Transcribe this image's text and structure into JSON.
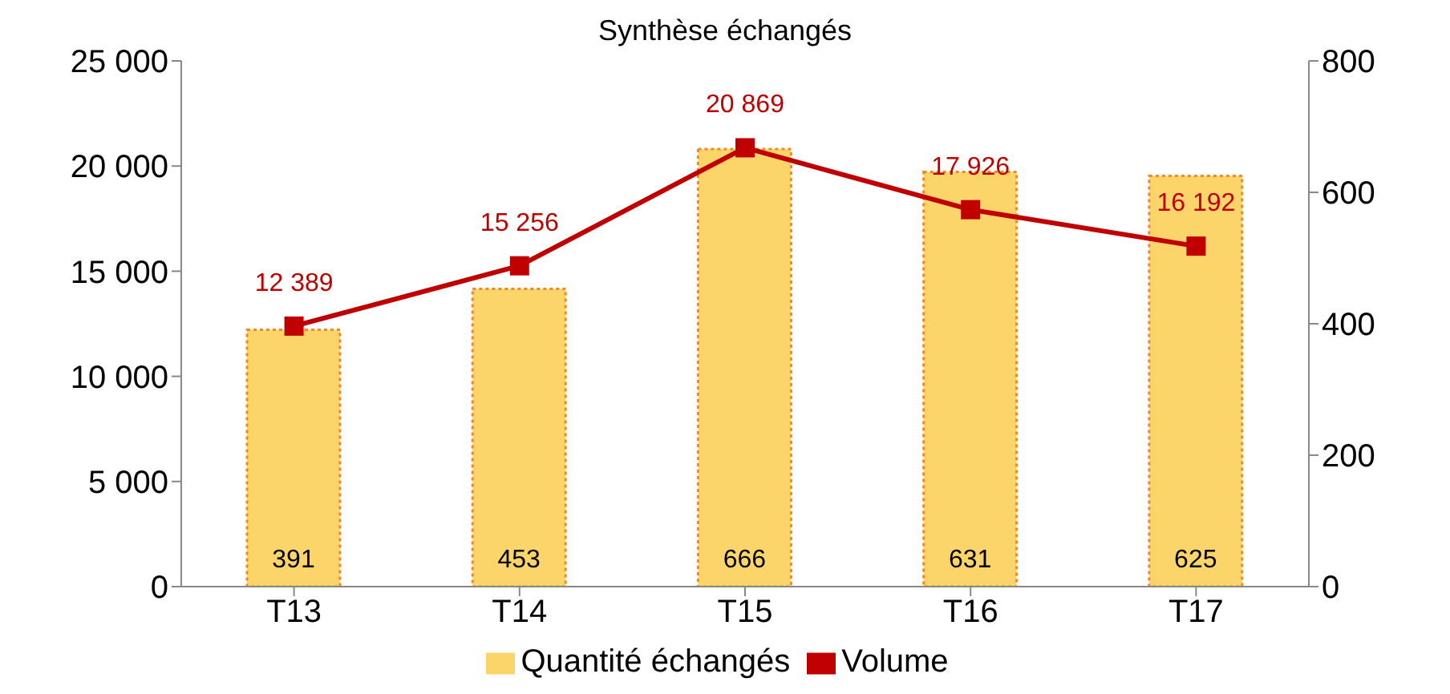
{
  "chart_data": {
    "type": "bar",
    "title": "Synthèse échangés",
    "categories": [
      "T13",
      "T14",
      "T15",
      "T16",
      "T17"
    ],
    "series": [
      {
        "name": "Quantité échangés",
        "axis": "y2",
        "color": "#fcd56a",
        "values": [
          391,
          453,
          666,
          631,
          625
        ],
        "value_labels": [
          "391",
          "453",
          "666",
          "631",
          "625"
        ]
      },
      {
        "name": "Volume",
        "type": "line",
        "color": "#c00000",
        "values": [
          12389,
          15256,
          20869,
          17926,
          16192
        ],
        "value_labels": [
          "12 389",
          "15 256",
          "20 869",
          "17 926",
          "16 192"
        ],
        "marker": "square"
      }
    ],
    "ylim": [
      0,
      25000
    ],
    "yticks": [
      {
        "value": 0,
        "label": "0"
      },
      {
        "value": 5000,
        "label": "5 000"
      },
      {
        "value": 10000,
        "label": "10 000"
      },
      {
        "value": 15000,
        "label": "15 000"
      },
      {
        "value": 20000,
        "label": "20 000"
      },
      {
        "value": 25000,
        "label": "25 000"
      }
    ],
    "y2lim": [
      0,
      800
    ],
    "y2ticks": [
      0,
      200,
      400,
      600,
      800
    ],
    "legend": "bottom",
    "grid": false
  }
}
